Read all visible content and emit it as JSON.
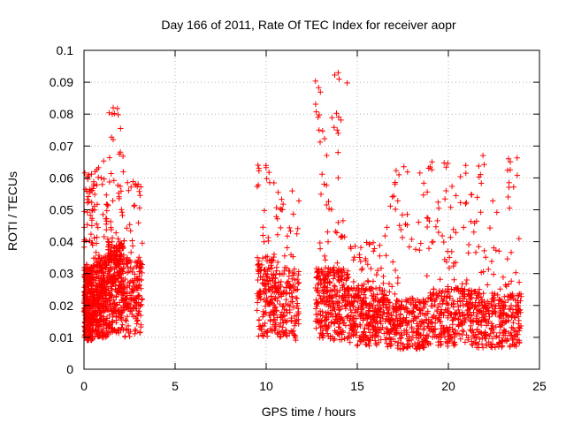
{
  "chart_data": {
    "type": "scatter",
    "title": "Day 166 of 2011, Rate Of TEC Index for receiver aopr",
    "xlabel": "GPS time / hours",
    "ylabel": "ROTI / TECUs",
    "xlim": [
      0,
      25
    ],
    "ylim": [
      0,
      0.1
    ],
    "x_ticks": [
      "0",
      "5",
      "10",
      "15",
      "20",
      "25"
    ],
    "y_ticks": [
      "0",
      "0.01",
      "0.02",
      "0.03",
      "0.04",
      "0.05",
      "0.06",
      "0.07",
      "0.08",
      "0.09",
      "0.1"
    ],
    "grid": true,
    "marker": "+",
    "series_color": "#ff0000",
    "clusters": [
      {
        "x_range": [
          0.0,
          0.5
        ],
        "y_typical": 0.02,
        "y_max": 0.062,
        "density": "high"
      },
      {
        "x_range": [
          0.5,
          1.3
        ],
        "y_typical": 0.022,
        "y_max": 0.066,
        "density": "high"
      },
      {
        "x_range": [
          1.3,
          2.2
        ],
        "y_typical": 0.025,
        "y_max": 0.082,
        "density": "high"
      },
      {
        "x_range": [
          2.2,
          3.2
        ],
        "y_typical": 0.022,
        "y_max": 0.06,
        "density": "medium"
      },
      {
        "x_range": [
          9.5,
          10.5
        ],
        "y_typical": 0.022,
        "y_max": 0.064,
        "density": "medium"
      },
      {
        "x_range": [
          10.5,
          11.8
        ],
        "y_typical": 0.02,
        "y_max": 0.056,
        "density": "medium"
      },
      {
        "x_range": [
          12.7,
          14.5
        ],
        "y_typical": 0.02,
        "y_max": 0.093,
        "density": "high"
      },
      {
        "x_range": [
          14.5,
          16.5
        ],
        "y_typical": 0.016,
        "y_max": 0.04,
        "density": "high"
      },
      {
        "x_range": [
          16.5,
          19.0
        ],
        "y_typical": 0.014,
        "y_max": 0.064,
        "density": "high"
      },
      {
        "x_range": [
          19.0,
          21.5
        ],
        "y_typical": 0.016,
        "y_max": 0.065,
        "density": "high"
      },
      {
        "x_range": [
          21.5,
          24.0
        ],
        "y_typical": 0.015,
        "y_max": 0.067,
        "density": "high"
      }
    ],
    "highlights": [
      {
        "x": 1.6,
        "y": 0.082
      },
      {
        "x": 1.55,
        "y": 0.08
      },
      {
        "x": 1.6,
        "y": 0.072
      },
      {
        "x": 12.85,
        "y": 0.079
      },
      {
        "x": 12.9,
        "y": 0.075
      },
      {
        "x": 13.95,
        "y": 0.093
      },
      {
        "x": 14.0,
        "y": 0.091
      },
      {
        "x": 13.9,
        "y": 0.075
      },
      {
        "x": 13.95,
        "y": 0.074
      },
      {
        "x": 13.95,
        "y": 0.06
      },
      {
        "x": 21.9,
        "y": 0.067
      },
      {
        "x": 23.3,
        "y": 0.066
      },
      {
        "x": 23.4,
        "y": 0.065
      },
      {
        "x": 9.55,
        "y": 0.064
      },
      {
        "x": 9.6,
        "y": 0.063
      },
      {
        "x": 19.1,
        "y": 0.065
      }
    ]
  }
}
